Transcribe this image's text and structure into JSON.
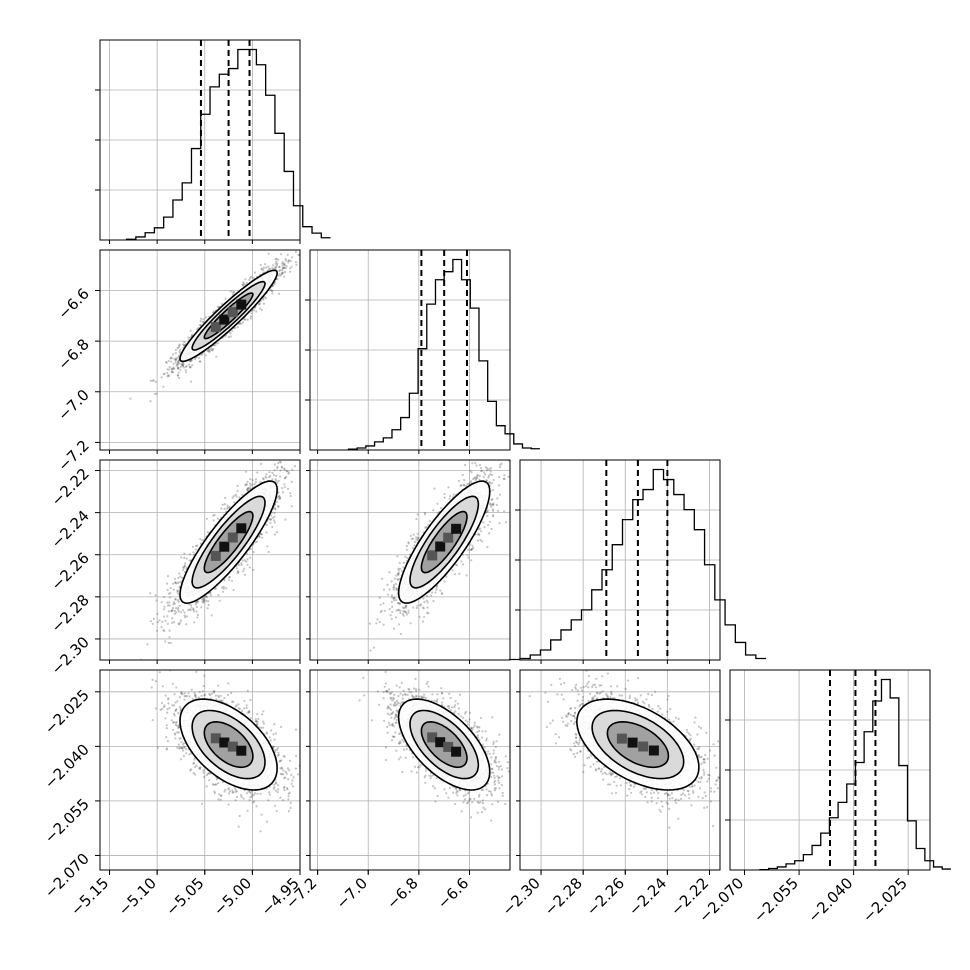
{
  "chart_data": {
    "type": "corner",
    "parameters": [
      {
        "range": [
          -5.16,
          -4.95
        ],
        "ticks": [
          -5.15,
          -5.1,
          -5.05,
          -5.0,
          -4.95
        ],
        "tick_labels": [
          "−5.15",
          "−5.10",
          "−5.05",
          "−5.00",
          "−4.95"
        ],
        "quantiles": [
          -5.054,
          -5.025,
          -5.003
        ]
      },
      {
        "range": [
          -7.23,
          -6.44
        ],
        "ticks": [
          -7.2,
          -7.0,
          -6.8,
          -6.6
        ],
        "tick_labels": [
          "−7.2",
          "−7.0",
          "−6.8",
          "−6.6"
        ],
        "quantiles": [
          -6.79,
          -6.7,
          -6.61
        ]
      },
      {
        "range": [
          -2.31,
          -2.215
        ],
        "ticks": [
          -2.3,
          -2.28,
          -2.26,
          -2.24,
          -2.22
        ],
        "tick_labels": [
          "−2.30",
          "−2.28",
          "−2.26",
          "−2.24",
          "−2.22"
        ],
        "quantiles": [
          -2.269,
          -2.254,
          -2.24
        ]
      },
      {
        "range": [
          -2.074,
          -2.019
        ],
        "ticks": [
          -2.07,
          -2.055,
          -2.04,
          -2.025
        ],
        "tick_labels": [
          "−2.070",
          "−2.055",
          "−2.040",
          "−2.025"
        ],
        "quantiles": [
          -2.0465,
          -2.0395,
          -2.034
        ]
      }
    ],
    "histograms": [
      [
        0.2,
        0.8,
        1.9,
        3.2,
        6.0,
        10.5,
        15.0,
        24.0,
        33.0,
        40.2,
        43.5,
        45.0,
        50.0,
        50.0,
        46.0,
        38.0,
        28.0,
        18.0,
        9.0,
        3.5,
        1.8,
        0.6
      ],
      [
        0.2,
        0.5,
        1.0,
        2.0,
        3.0,
        5.0,
        8.0,
        14.0,
        25.0,
        36.0,
        42.0,
        44.0,
        47.0,
        42.0,
        35.0,
        22.0,
        12.0,
        6.0,
        4.0,
        1.5,
        0.5,
        0.3
      ],
      [
        0.1,
        0.3,
        1.0,
        2.0,
        4.0,
        6.0,
        8.0,
        10.0,
        14.0,
        18.0,
        23.0,
        28.0,
        32.0,
        34.0,
        38.0,
        36.0,
        33.0,
        30.0,
        26.0,
        19.0,
        12.0,
        7.0,
        3.5,
        1.0,
        0.3
      ],
      [
        0.1,
        0.5,
        1.0,
        2.0,
        3.0,
        5.0,
        8.0,
        12.0,
        17.0,
        22.0,
        28.0,
        35.0,
        45.0,
        55.0,
        62.0,
        56.0,
        34.0,
        16.0,
        7.0,
        3.0,
        1.0,
        0.3
      ]
    ],
    "correlations": [
      [
        1,
        0.94,
        0.86,
        -0.52
      ],
      [
        0.94,
        1,
        0.83,
        -0.6
      ],
      [
        0.86,
        0.83,
        1,
        -0.5
      ],
      [
        -0.52,
        -0.6,
        -0.5,
        1
      ]
    ],
    "grid": true,
    "xlabel": "",
    "ylabel": "",
    "title": ""
  }
}
